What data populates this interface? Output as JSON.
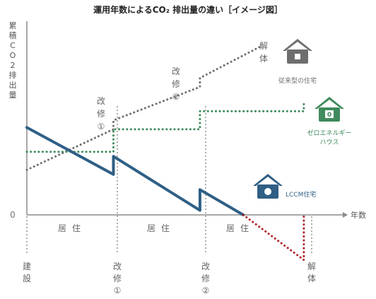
{
  "title": "運用年数によるCO₂ 排出量の違い［イメージ図］",
  "y_axis_label": "累積CO2排出量",
  "x_axis_label": "年数",
  "zero_label": "0",
  "phase_labels": [
    "居住",
    "居住",
    "居住"
  ],
  "events": {
    "kenchiku": "建設",
    "kaishu1": "改修①",
    "kaishu2": "改修②",
    "kaitai": "解体"
  },
  "conventional_labels": {
    "kaishu1": "改修①",
    "kaishu2": "改修②",
    "kaitai": "解体"
  },
  "house_labels": {
    "conventional": "従来型の住宅",
    "zeh_line1": "ゼロエネルギー",
    "zeh_line2": "ハウス",
    "zeh_icon_text": "0",
    "lccm": "LCCM住宅"
  },
  "colors": {
    "conventional": "#6e6e6e",
    "zeh": "#3f8a5d",
    "lccm": "#2f5f85",
    "lccm_negative": "#b02226",
    "axis": "#8a8a8a",
    "marker": "#777777"
  },
  "chart_data": {
    "type": "line",
    "title": "運用年数によるCO₂ 排出量の違い［イメージ図］",
    "ylabel": "累積CO2排出量",
    "xlabel": "年数",
    "y_ticks": [
      "0"
    ],
    "x_events": [
      "建設",
      "改修①",
      "改修②",
      "解体"
    ],
    "x_event_values": [
      0,
      1,
      2,
      3.2
    ],
    "xlim": [
      0,
      3.65
    ],
    "ylim": [
      -0.67,
      2.15
    ],
    "series": [
      {
        "name": "従来型の住宅",
        "style": "dotted",
        "x": [
          0,
          1,
          1,
          2,
          2,
          2.7
        ],
        "y": [
          0.5,
          0.95,
          1.05,
          1.42,
          1.52,
          1.87
        ]
      },
      {
        "name": "ゼロエネルギーハウス",
        "style": "dotted",
        "x": [
          0,
          1,
          1,
          2,
          2,
          3.2,
          3.2
        ],
        "y": [
          0.7,
          0.7,
          0.95,
          0.95,
          1.15,
          1.15,
          1.27
        ]
      },
      {
        "name": "LCCM住宅",
        "style": "solid",
        "x": [
          0,
          1,
          1,
          2,
          2,
          2.5
        ],
        "y": [
          0.97,
          0.45,
          0.65,
          0.05,
          0.28,
          0
        ]
      },
      {
        "name": "LCCM住宅",
        "style": "dotted",
        "x": [
          2.5,
          3.2,
          3.2
        ],
        "y": [
          0,
          -0.5,
          0
        ]
      }
    ]
  }
}
